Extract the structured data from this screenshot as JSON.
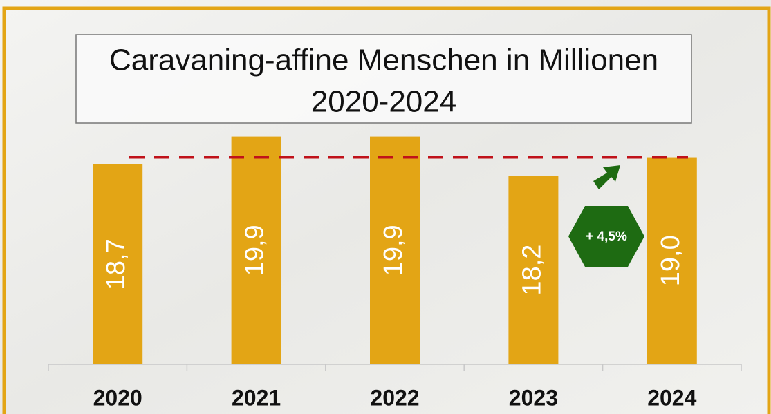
{
  "chart_data": {
    "type": "bar",
    "title": [
      "Caravaning-affine Menschen in Millionen",
      "2020-2024"
    ],
    "categories": [
      "2020",
      "2021",
      "2022",
      "2023",
      "2024"
    ],
    "values": [
      18.7,
      19.9,
      19.9,
      18.2,
      19.0
    ],
    "value_labels": [
      "18,7",
      "19,9",
      "19,9",
      "18,2",
      "19,0"
    ],
    "color": "#e3a515",
    "ylim": [
      10,
      21
    ],
    "reference_line": {
      "value": 19.0,
      "color": "#c0121a"
    },
    "annotation": {
      "text": "+ 4,5%",
      "color": "#1e6b12"
    }
  }
}
